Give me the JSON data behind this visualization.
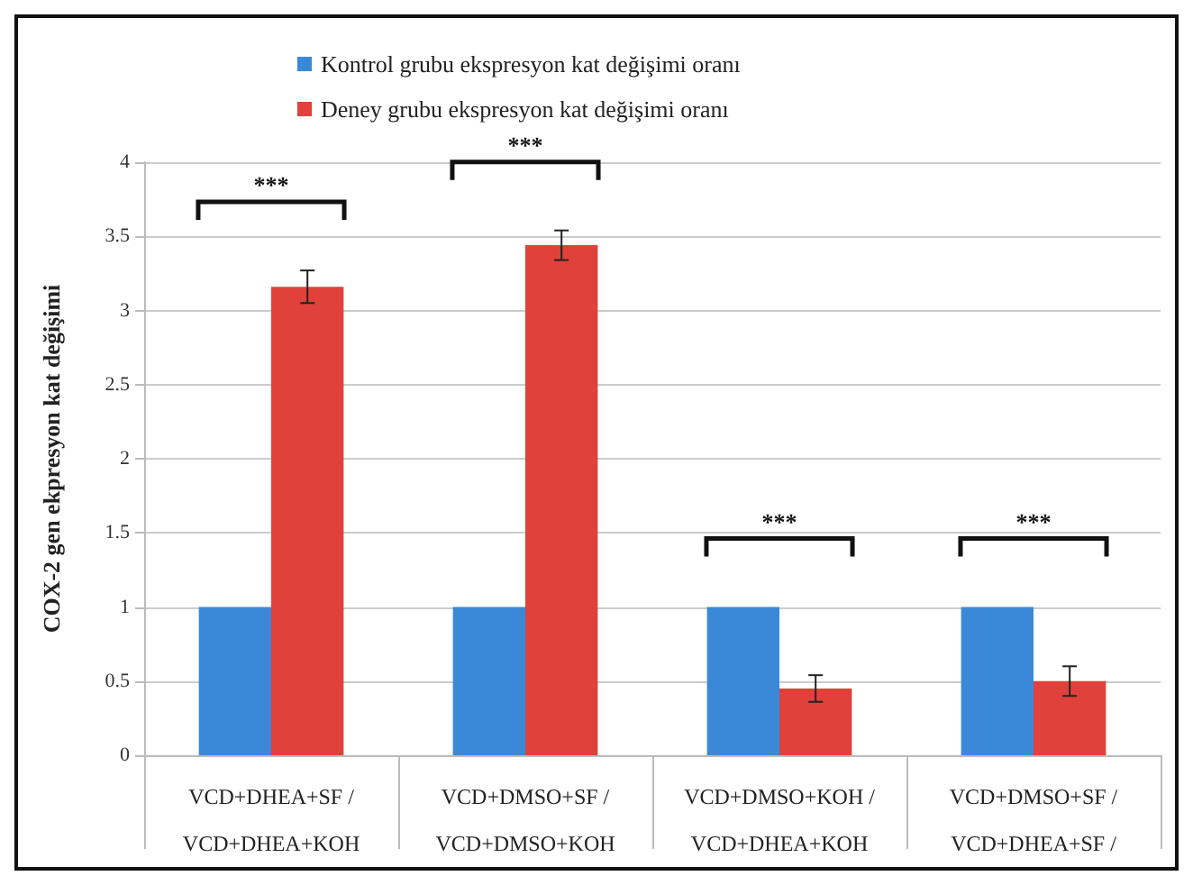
{
  "chart_data": {
    "type": "bar",
    "ylabel": "COX-2 gen ekpresyon kat değişimi",
    "categories": [
      "VCD+DHEA+SF /\nVCD+DHEA+KOH",
      "VCD+DMSO+SF /\nVCD+DMSO+KOH",
      "VCD+DMSO+KOH /\nVCD+DHEA+KOH",
      "VCD+DMSO+SF /\nVCD+DHEA+SF /"
    ],
    "series": [
      {
        "name": "Kontrol grubu ekspresyon kat değişimi oranı",
        "color": "#3a89d9",
        "values": [
          1,
          1,
          1,
          1
        ]
      },
      {
        "name": "Deney grubu ekspresyon kat değişimi oranı",
        "color": "#e0413a",
        "values": [
          3.16,
          3.44,
          0.45,
          0.5
        ],
        "errors": [
          0.11,
          0.1,
          0.09,
          0.1
        ]
      }
    ],
    "ylim": [
      0,
      4
    ],
    "yticks": [
      0,
      0.5,
      1,
      1.5,
      2,
      2.5,
      3,
      3.5,
      4
    ],
    "grid": "y",
    "legend": "top",
    "annotations": [
      "***",
      "***",
      "***",
      "***"
    ]
  }
}
